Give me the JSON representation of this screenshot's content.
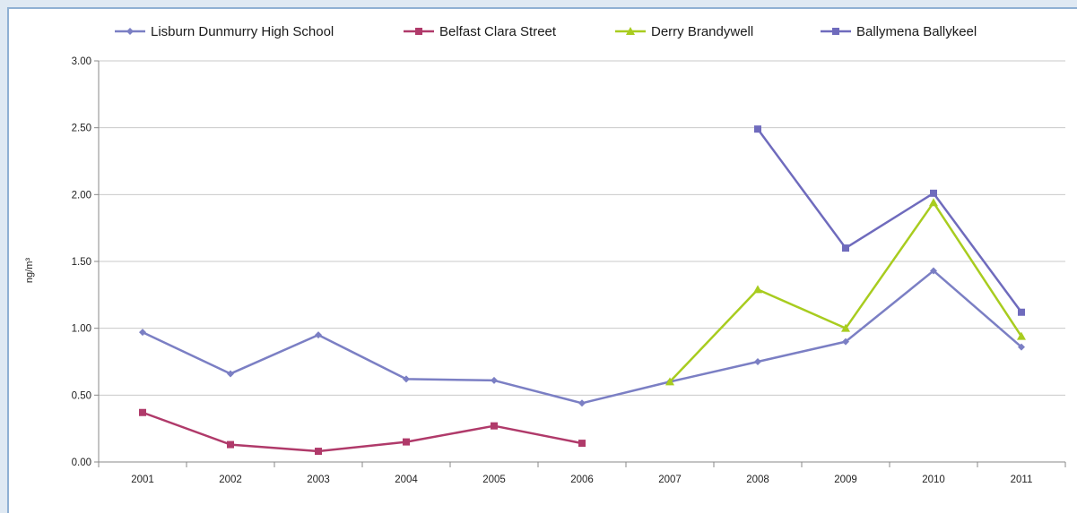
{
  "chart_data": {
    "type": "line",
    "title": "",
    "xlabel": "",
    "ylabel": "ng/m³",
    "x": [
      "2001",
      "2002",
      "2003",
      "2004",
      "2005",
      "2006",
      "2007",
      "2008",
      "2009",
      "2010",
      "2011"
    ],
    "y_ticks": [
      "0.00",
      "0.50",
      "1.00",
      "1.50",
      "2.00",
      "2.50",
      "3.00"
    ],
    "ylim": [
      0,
      3
    ],
    "grid": true,
    "legend_position": "top",
    "series": [
      {
        "name": "Lisburn Dunmurry High School",
        "color": "#7b7fc4",
        "marker": "diamond",
        "values": [
          0.97,
          0.66,
          0.95,
          0.62,
          0.61,
          0.44,
          0.6,
          0.75,
          0.9,
          1.43,
          0.86
        ]
      },
      {
        "name": "Belfast Clara Street",
        "color": "#b03a6a",
        "marker": "square",
        "values": [
          0.37,
          0.13,
          0.08,
          0.15,
          0.27,
          0.14,
          null,
          null,
          null,
          null,
          null
        ]
      },
      {
        "name": "Derry Brandywell",
        "color": "#a8cc1f",
        "marker": "triangle",
        "values": [
          null,
          null,
          null,
          null,
          null,
          null,
          0.6,
          1.29,
          1.0,
          1.94,
          0.94
        ]
      },
      {
        "name": "Ballymena Ballykeel",
        "color": "#6f6bbd",
        "marker": "square",
        "values": [
          null,
          null,
          null,
          null,
          null,
          null,
          null,
          2.49,
          1.6,
          2.01,
          1.12
        ]
      }
    ]
  }
}
